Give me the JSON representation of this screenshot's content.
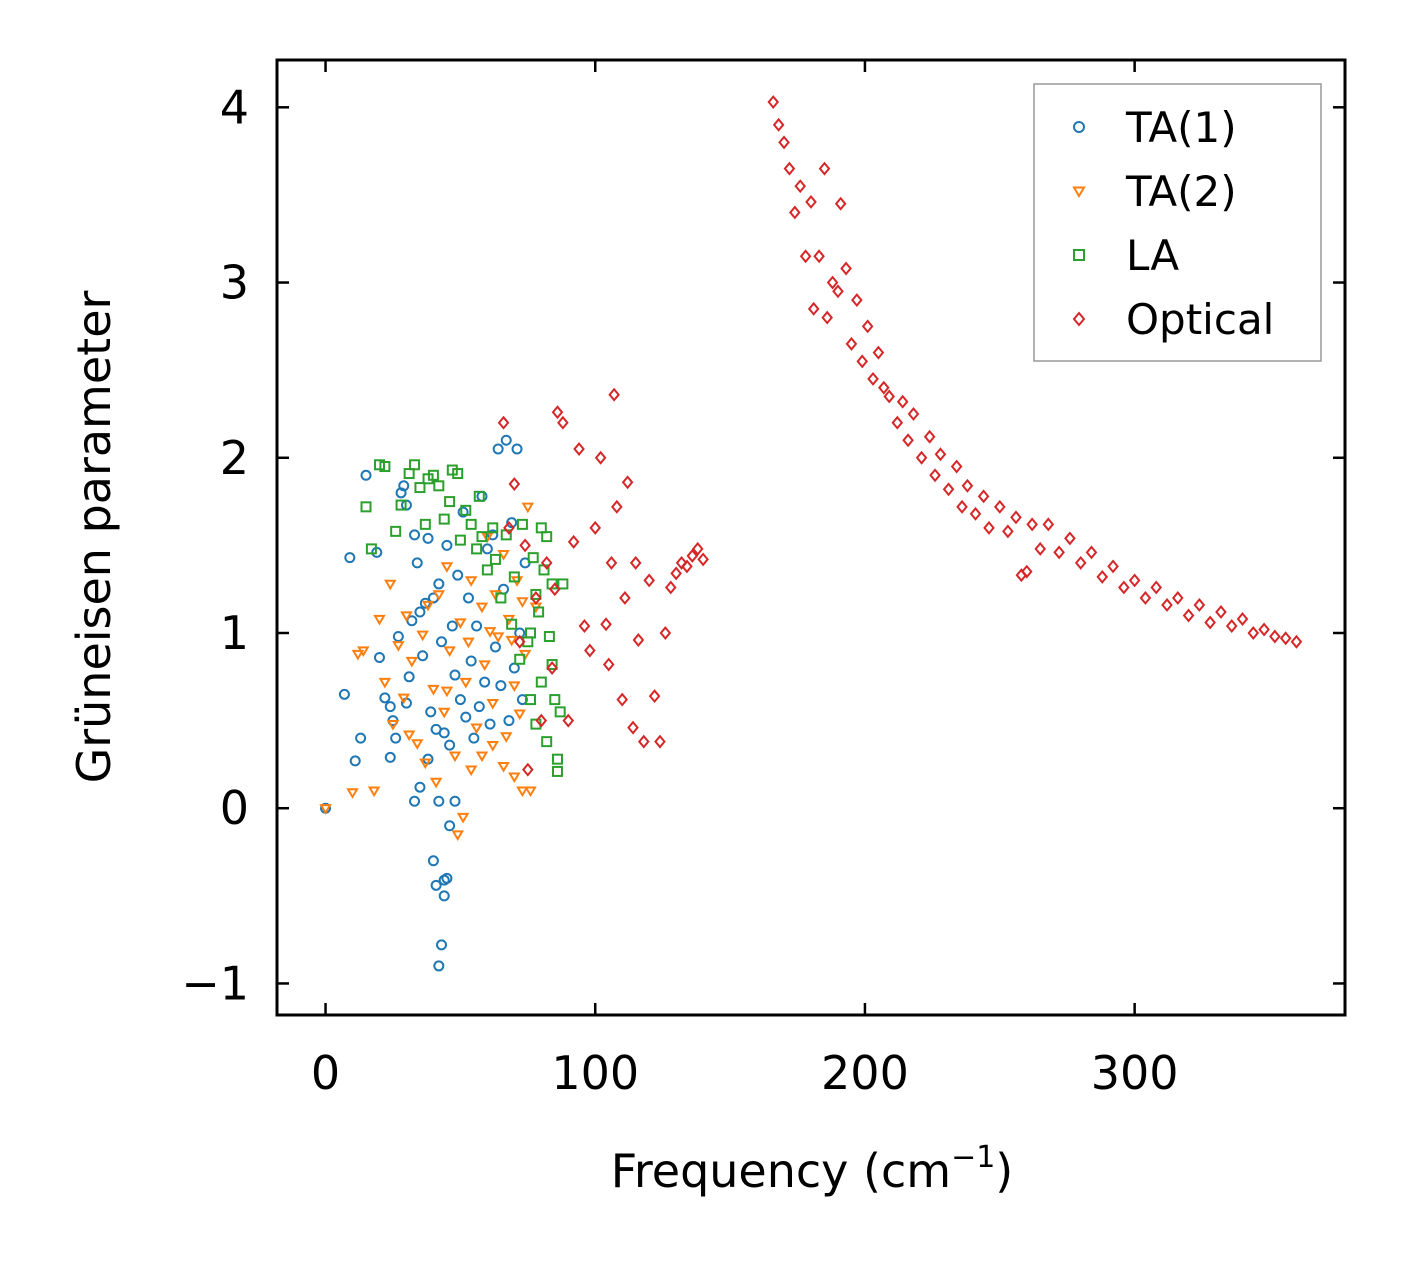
{
  "chart_data": {
    "type": "scatter",
    "title": "",
    "xlabel_main": "Frequency (cm",
    "xlabel_sup": "−1",
    "xlabel_end": ")",
    "ylabel": "Grüneisen parameter",
    "xlim": [
      -18,
      378
    ],
    "ylim": [
      -1.18,
      4.27
    ],
    "xticks": [
      0,
      100,
      200,
      300
    ],
    "xtick_labels": [
      "0",
      "100",
      "200",
      "300"
    ],
    "yticks": [
      -1,
      0,
      1,
      2,
      3,
      4
    ],
    "ytick_labels": [
      "−1",
      "0",
      "1",
      "2",
      "3",
      "4"
    ],
    "legend_position": "top-right",
    "series": [
      {
        "name": "TA(1)",
        "marker": "circle",
        "color": "#1f77b4",
        "points": [
          [
            0,
            0
          ],
          [
            7,
            0.65
          ],
          [
            9,
            1.43
          ],
          [
            11,
            0.27
          ],
          [
            13,
            0.4
          ],
          [
            15,
            1.9
          ],
          [
            19,
            1.46
          ],
          [
            20,
            0.86
          ],
          [
            22,
            0.63
          ],
          [
            24,
            0.58
          ],
          [
            25,
            0.5
          ],
          [
            27,
            0.98
          ],
          [
            28,
            1.8
          ],
          [
            29,
            1.84
          ],
          [
            30,
            0.6
          ],
          [
            31,
            0.75
          ],
          [
            32,
            1.07
          ],
          [
            33,
            1.56
          ],
          [
            34,
            1.4
          ],
          [
            35,
            1.12
          ],
          [
            36,
            0.87
          ],
          [
            37,
            1.17
          ],
          [
            38,
            1.54
          ],
          [
            39,
            0.55
          ],
          [
            40,
            1.2
          ],
          [
            41,
            0.45
          ],
          [
            42,
            1.28
          ],
          [
            43,
            0.95
          ],
          [
            44,
            0.43
          ],
          [
            45,
            1.5
          ],
          [
            46,
            0.36
          ],
          [
            47,
            1.04
          ],
          [
            48,
            0.76
          ],
          [
            49,
            1.33
          ],
          [
            50,
            0.62
          ],
          [
            51,
            1.69
          ],
          [
            52,
            0.52
          ],
          [
            53,
            1.2
          ],
          [
            54,
            0.84
          ],
          [
            55,
            0.4
          ],
          [
            56,
            1.04
          ],
          [
            57,
            0.58
          ],
          [
            58,
            1.78
          ],
          [
            59,
            0.72
          ],
          [
            60,
            1.48
          ],
          [
            61,
            0.48
          ],
          [
            62,
            1.56
          ],
          [
            63,
            0.92
          ],
          [
            64,
            2.05
          ],
          [
            65,
            0.7
          ],
          [
            66,
            1.25
          ],
          [
            67,
            2.1
          ],
          [
            68,
            0.5
          ],
          [
            69,
            1.63
          ],
          [
            70,
            0.8
          ],
          [
            71,
            2.05
          ],
          [
            72,
            1.0
          ],
          [
            73,
            0.62
          ],
          [
            74,
            1.4
          ],
          [
            35,
            0.12
          ],
          [
            38,
            0.28
          ],
          [
            40,
            -0.3
          ],
          [
            41,
            -0.44
          ],
          [
            42,
            -0.9
          ],
          [
            43,
            -0.78
          ],
          [
            44,
            -0.5
          ],
          [
            44,
            -0.41
          ],
          [
            45,
            -0.4
          ],
          [
            46,
            -0.1
          ],
          [
            42,
            0.04
          ],
          [
            48,
            0.04
          ],
          [
            33,
            0.04
          ],
          [
            30,
            1.73
          ],
          [
            26,
            0.4
          ],
          [
            24,
            0.29
          ]
        ]
      },
      {
        "name": "TA(2)",
        "marker": "triangle",
        "color": "#ff7f0e",
        "points": [
          [
            0,
            0
          ],
          [
            10,
            0.09
          ],
          [
            12,
            0.88
          ],
          [
            14,
            0.9
          ],
          [
            18,
            0.1
          ],
          [
            20,
            1.08
          ],
          [
            22,
            0.72
          ],
          [
            24,
            1.28
          ],
          [
            25,
            0.48
          ],
          [
            27,
            0.93
          ],
          [
            29,
            0.63
          ],
          [
            30,
            1.1
          ],
          [
            32,
            0.84
          ],
          [
            34,
            0.37
          ],
          [
            36,
            0.99
          ],
          [
            38,
            1.16
          ],
          [
            40,
            0.68
          ],
          [
            42,
            1.22
          ],
          [
            44,
            0.55
          ],
          [
            45,
            1.38
          ],
          [
            46,
            0.9
          ],
          [
            48,
            0.3
          ],
          [
            49,
            -0.15
          ],
          [
            50,
            1.06
          ],
          [
            51,
            -0.05
          ],
          [
            52,
            0.72
          ],
          [
            54,
            1.3
          ],
          [
            56,
            0.46
          ],
          [
            58,
            1.15
          ],
          [
            59,
            0.82
          ],
          [
            60,
            1.55
          ],
          [
            62,
            0.6
          ],
          [
            63,
            1.22
          ],
          [
            64,
            0.98
          ],
          [
            66,
            1.45
          ],
          [
            67,
            0.41
          ],
          [
            68,
            1.08
          ],
          [
            70,
            0.7
          ],
          [
            71,
            1.3
          ],
          [
            72,
            0.54
          ],
          [
            73,
            1.18
          ],
          [
            74,
            0.88
          ],
          [
            75,
            1.72
          ],
          [
            76,
            0.1
          ],
          [
            78,
            1.15
          ],
          [
            54,
            0.22
          ],
          [
            58,
            0.3
          ],
          [
            62,
            0.36
          ],
          [
            66,
            0.24
          ],
          [
            70,
            0.18
          ],
          [
            73,
            0.1
          ],
          [
            41,
            0.15
          ],
          [
            37,
            0.26
          ],
          [
            31,
            0.42
          ],
          [
            45,
            0.67
          ],
          [
            53,
            0.95
          ],
          [
            61,
            1.01
          ],
          [
            69,
            0.96
          ]
        ]
      },
      {
        "name": "LA",
        "marker": "square",
        "color": "#2ca02c",
        "points": [
          [
            15,
            1.72
          ],
          [
            17,
            1.48
          ],
          [
            20,
            1.96
          ],
          [
            22,
            1.95
          ],
          [
            26,
            1.58
          ],
          [
            28,
            1.73
          ],
          [
            31,
            1.91
          ],
          [
            33,
            1.96
          ],
          [
            35,
            1.83
          ],
          [
            37,
            1.62
          ],
          [
            38,
            1.88
          ],
          [
            40,
            1.9
          ],
          [
            42,
            1.84
          ],
          [
            44,
            1.65
          ],
          [
            46,
            1.75
          ],
          [
            47,
            1.93
          ],
          [
            49,
            1.91
          ],
          [
            50,
            1.53
          ],
          [
            52,
            1.7
          ],
          [
            54,
            1.62
          ],
          [
            56,
            1.48
          ],
          [
            57,
            1.78
          ],
          [
            58,
            1.55
          ],
          [
            60,
            1.36
          ],
          [
            62,
            1.6
          ],
          [
            63,
            1.42
          ],
          [
            65,
            1.2
          ],
          [
            67,
            1.56
          ],
          [
            69,
            1.05
          ],
          [
            70,
            1.32
          ],
          [
            72,
            0.85
          ],
          [
            73,
            1.62
          ],
          [
            75,
            0.95
          ],
          [
            76,
            0.62
          ],
          [
            77,
            1.43
          ],
          [
            78,
            0.48
          ],
          [
            79,
            1.12
          ],
          [
            80,
            0.72
          ],
          [
            81,
            1.36
          ],
          [
            82,
            0.38
          ],
          [
            83,
            0.98
          ],
          [
            84,
            1.28
          ],
          [
            85,
            0.62
          ],
          [
            86,
            0.28
          ],
          [
            87,
            0.55
          ],
          [
            88,
            1.28
          ],
          [
            86,
            0.21
          ],
          [
            84,
            0.82
          ],
          [
            82,
            1.55
          ],
          [
            80,
            1.6
          ],
          [
            78,
            1.22
          ],
          [
            76,
            1.0
          ]
        ]
      },
      {
        "name": "Optical",
        "marker": "diamond",
        "color": "#d62728",
        "points": [
          [
            66,
            2.2
          ],
          [
            68,
            1.6
          ],
          [
            70,
            1.85
          ],
          [
            72,
            0.95
          ],
          [
            74,
            1.5
          ],
          [
            75,
            0.22
          ],
          [
            78,
            1.2
          ],
          [
            80,
            0.5
          ],
          [
            82,
            1.4
          ],
          [
            84,
            0.8
          ],
          [
            85,
            1.25
          ],
          [
            86,
            2.26
          ],
          [
            88,
            2.2
          ],
          [
            90,
            0.5
          ],
          [
            92,
            1.52
          ],
          [
            94,
            2.05
          ],
          [
            96,
            1.04
          ],
          [
            98,
            0.9
          ],
          [
            100,
            1.6
          ],
          [
            102,
            2.0
          ],
          [
            104,
            1.05
          ],
          [
            105,
            0.82
          ],
          [
            106,
            1.4
          ],
          [
            107,
            2.36
          ],
          [
            108,
            1.72
          ],
          [
            110,
            0.62
          ],
          [
            111,
            1.2
          ],
          [
            112,
            1.86
          ],
          [
            114,
            0.46
          ],
          [
            115,
            1.4
          ],
          [
            116,
            0.96
          ],
          [
            118,
            0.38
          ],
          [
            120,
            1.3
          ],
          [
            122,
            0.64
          ],
          [
            124,
            0.38
          ],
          [
            126,
            1.0
          ],
          [
            128,
            1.26
          ],
          [
            130,
            1.34
          ],
          [
            132,
            1.4
          ],
          [
            134,
            1.38
          ],
          [
            136,
            1.44
          ],
          [
            138,
            1.48
          ],
          [
            140,
            1.42
          ],
          [
            166,
            4.03
          ],
          [
            168,
            3.9
          ],
          [
            170,
            3.8
          ],
          [
            172,
            3.65
          ],
          [
            174,
            3.4
          ],
          [
            176,
            3.55
          ],
          [
            178,
            3.15
          ],
          [
            180,
            3.46
          ],
          [
            181,
            2.85
          ],
          [
            183,
            3.15
          ],
          [
            185,
            3.65
          ],
          [
            186,
            2.8
          ],
          [
            188,
            3.0
          ],
          [
            190,
            2.95
          ],
          [
            191,
            3.45
          ],
          [
            193,
            3.08
          ],
          [
            195,
            2.65
          ],
          [
            197,
            2.9
          ],
          [
            199,
            2.55
          ],
          [
            201,
            2.75
          ],
          [
            203,
            2.45
          ],
          [
            205,
            2.6
          ],
          [
            207,
            2.4
          ],
          [
            209,
            2.35
          ],
          [
            212,
            2.2
          ],
          [
            214,
            2.32
          ],
          [
            216,
            2.1
          ],
          [
            218,
            2.25
          ],
          [
            221,
            2.0
          ],
          [
            224,
            2.12
          ],
          [
            226,
            1.9
          ],
          [
            228,
            2.02
          ],
          [
            231,
            1.82
          ],
          [
            234,
            1.95
          ],
          [
            236,
            1.72
          ],
          [
            238,
            1.84
          ],
          [
            241,
            1.68
          ],
          [
            244,
            1.78
          ],
          [
            246,
            1.6
          ],
          [
            250,
            1.72
          ],
          [
            253,
            1.58
          ],
          [
            256,
            1.66
          ],
          [
            258,
            1.33
          ],
          [
            260,
            1.35
          ],
          [
            262,
            1.62
          ],
          [
            265,
            1.48
          ],
          [
            268,
            1.62
          ],
          [
            272,
            1.46
          ],
          [
            276,
            1.54
          ],
          [
            280,
            1.4
          ],
          [
            284,
            1.46
          ],
          [
            288,
            1.32
          ],
          [
            292,
            1.38
          ],
          [
            296,
            1.26
          ],
          [
            300,
            1.3
          ],
          [
            304,
            1.2
          ],
          [
            308,
            1.26
          ],
          [
            312,
            1.16
          ],
          [
            316,
            1.2
          ],
          [
            320,
            1.1
          ],
          [
            324,
            1.16
          ],
          [
            328,
            1.06
          ],
          [
            332,
            1.12
          ],
          [
            336,
            1.04
          ],
          [
            340,
            1.08
          ],
          [
            344,
            1.0
          ],
          [
            348,
            1.02
          ],
          [
            352,
            0.98
          ],
          [
            356,
            0.97
          ],
          [
            360,
            0.95
          ]
        ]
      }
    ]
  }
}
